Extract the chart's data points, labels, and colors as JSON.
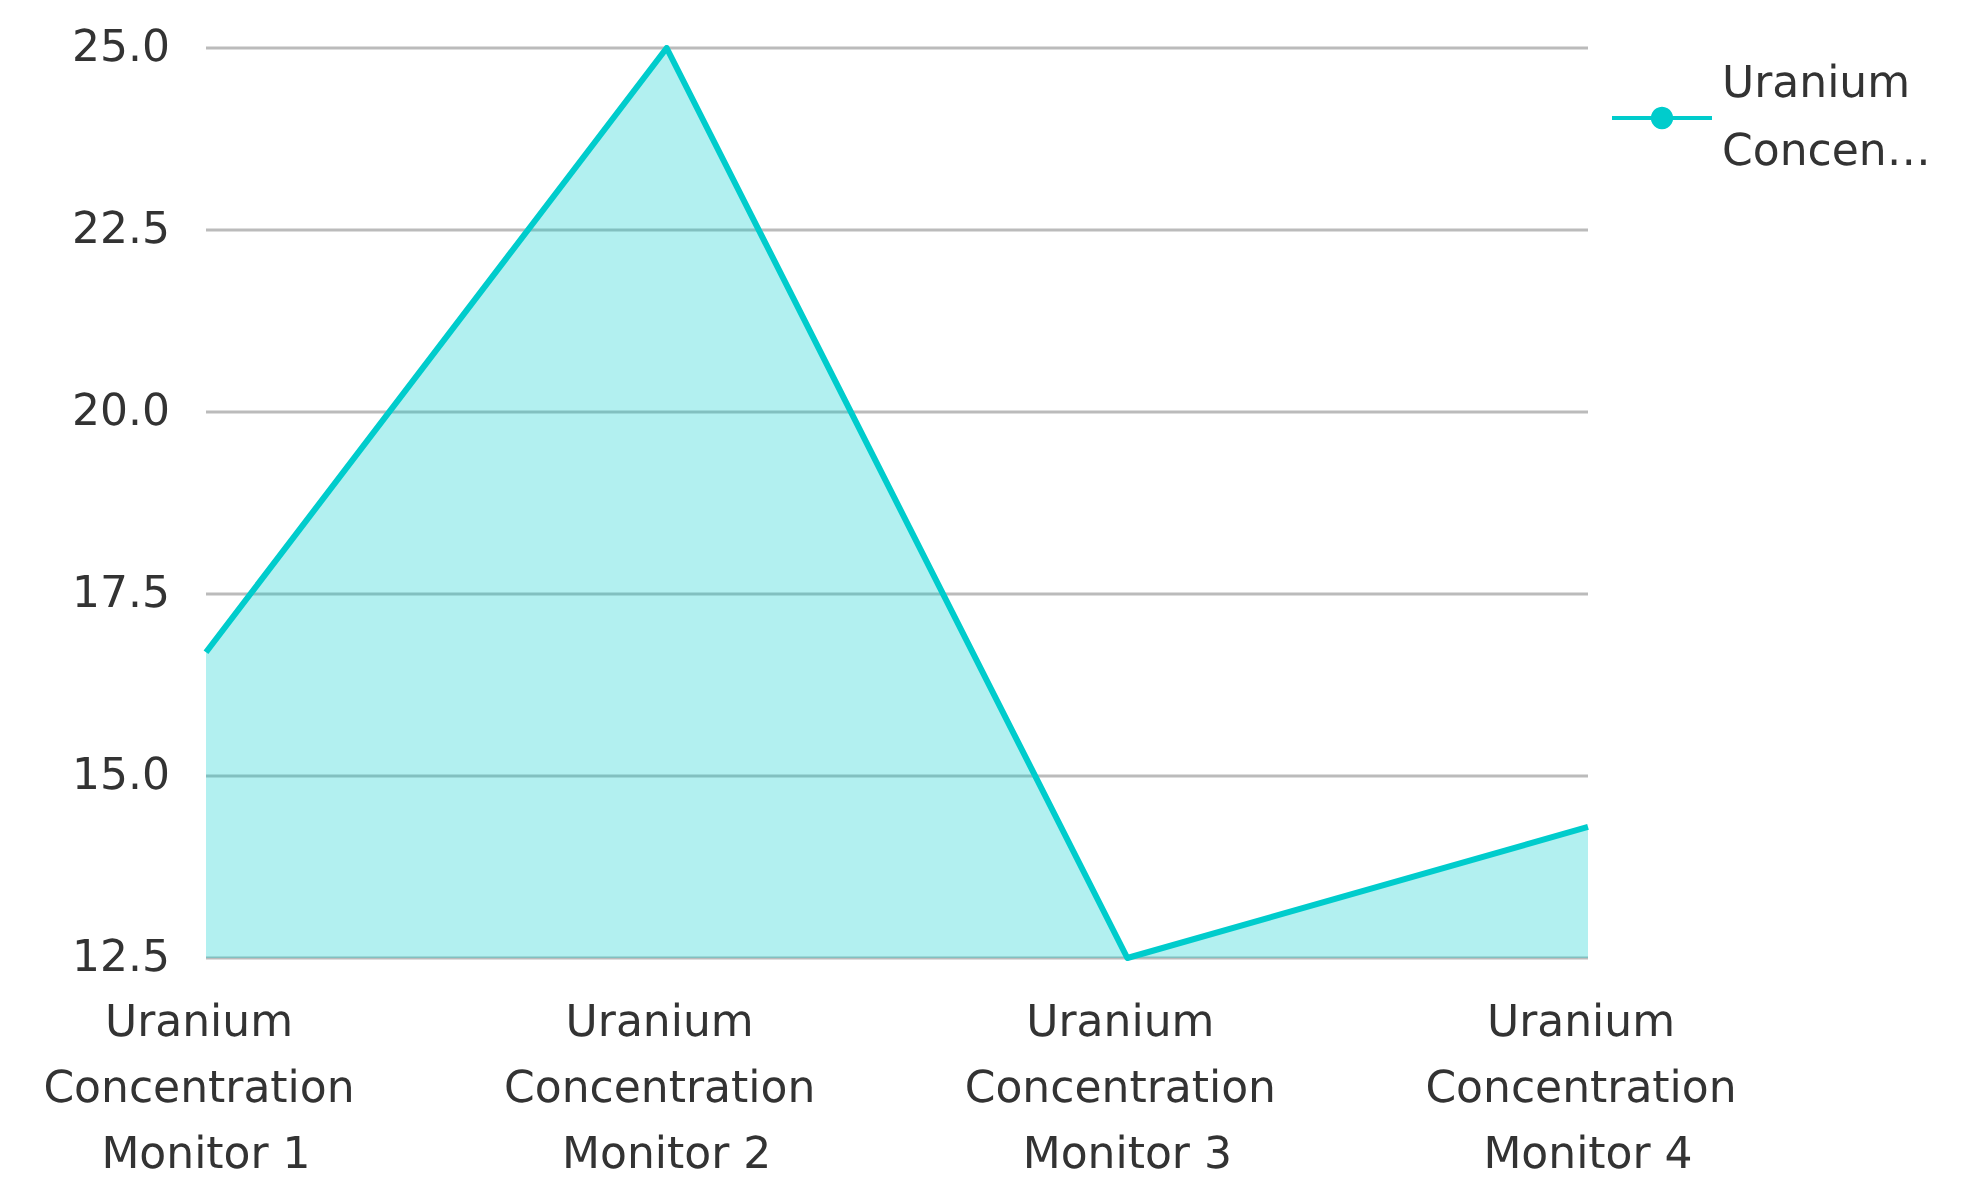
{
  "chart_data": {
    "type": "area",
    "categories": [
      "Uranium Concentration Monitor 1",
      "Uranium Concentration Monitor 2",
      "Uranium Concentration Monitor 3",
      "Uranium Concentration Monitor 4"
    ],
    "series": [
      {
        "name": "Uranium Concen…",
        "color": "#00cccc",
        "values": [
          16.7,
          25.0,
          12.5,
          14.3
        ]
      }
    ],
    "ylim": [
      12.5,
      25
    ],
    "yticks": [
      {
        "value": 12.5,
        "label": "12.5"
      },
      {
        "value": 15,
        "label": "15.0"
      },
      {
        "value": 17.5,
        "label": "17.5"
      },
      {
        "value": 20,
        "label": "20.0"
      },
      {
        "value": 22.5,
        "label": "22.5"
      },
      {
        "value": 25,
        "label": "25.0"
      }
    ],
    "grid": "y",
    "legend": "top right",
    "marker": "none"
  }
}
